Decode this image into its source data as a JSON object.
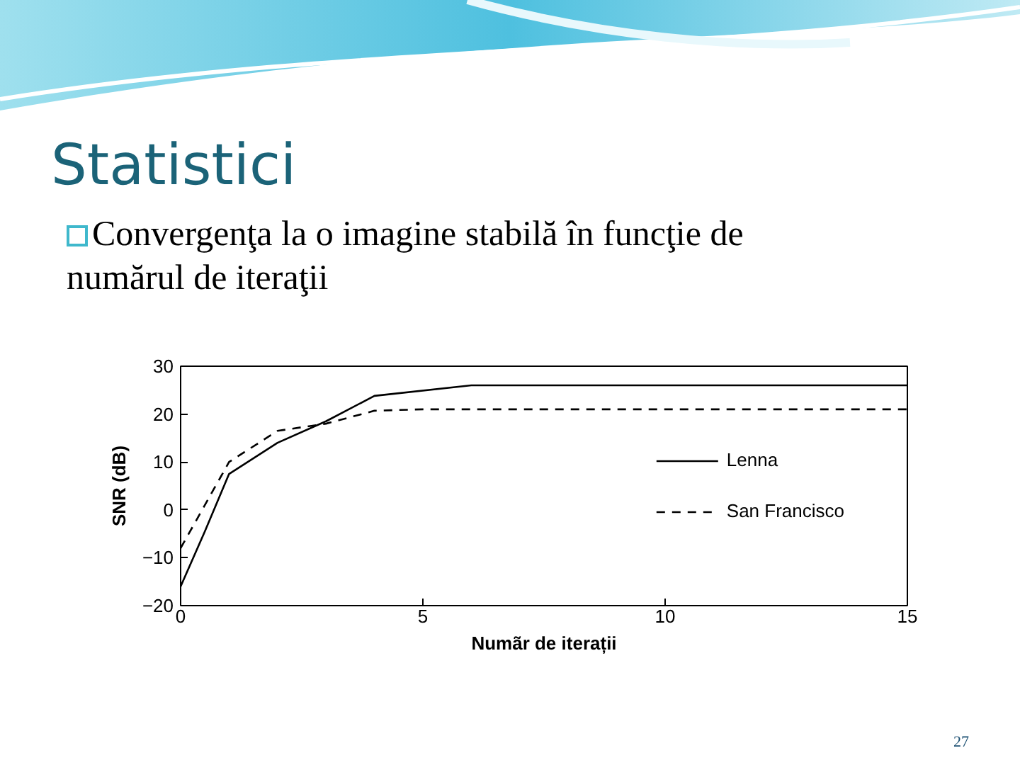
{
  "chart_data": {
    "type": "line",
    "title": "Statistici",
    "subtitle": "Convergenţa la o imagine stabilă în funcţie de numărul de iteraţii",
    "xlabel": "Numãr de iterații",
    "ylabel": "SNR (dB)",
    "annotations": [
      "27"
    ],
    "xlim": [
      0,
      15
    ],
    "ylim": [
      -20,
      30
    ],
    "xticks": [
      0,
      5,
      10,
      15
    ],
    "yticks": [
      -20,
      -10,
      0,
      10,
      20,
      30
    ],
    "grid": false,
    "legend": "right",
    "series": [
      {
        "name": "Lenna",
        "color": "#000000",
        "line_style": "solid",
        "x": [
          0,
          0.5,
          1,
          2,
          3,
          4,
          6,
          15
        ],
        "values": [
          -16,
          -4.5,
          7.5,
          14,
          18.5,
          23.8,
          26,
          26
        ]
      },
      {
        "name": "San Francisco",
        "color": "#000000",
        "line_style": "dashed",
        "x": [
          0,
          1,
          2,
          3,
          4,
          5,
          15
        ],
        "values": [
          -8,
          10,
          16.5,
          18,
          20.7,
          21,
          21
        ]
      }
    ]
  }
}
